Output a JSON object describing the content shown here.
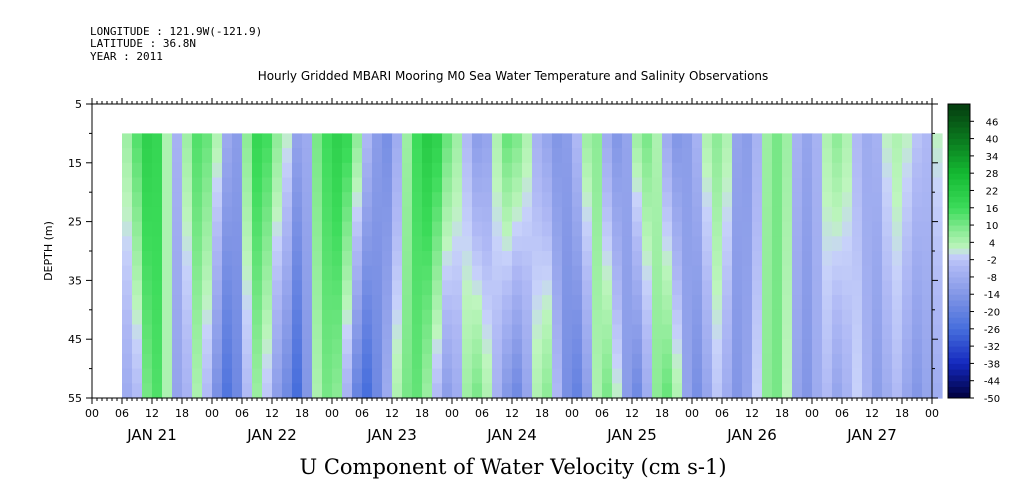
{
  "header": {
    "longitude": "LONGITUDE : 121.9W(-121.9)",
    "latitude": "LATITUDE : 36.8N",
    "year": "YEAR : 2011"
  },
  "chart_data": {
    "type": "heatmap",
    "title": "Hourly Gridded MBARI Mooring M0 Sea Water Temperature and Salinity Observations",
    "xlabel": "",
    "ylabel": "DEPTH (m)",
    "caption": "U Component of Water Velocity (cm s-1)",
    "x_range_hours": [
      0,
      168
    ],
    "data_start_hour": 6,
    "ylim": [
      5,
      55
    ],
    "y_inverted": true,
    "y_ticks": [
      5,
      15,
      25,
      35,
      45,
      55
    ],
    "depth_top_data": 10,
    "x_hour_labels": [
      "00",
      "06",
      "12",
      "18",
      "00",
      "06",
      "12",
      "18",
      "00",
      "06",
      "12",
      "18",
      "00",
      "06",
      "12",
      "18",
      "00",
      "06",
      "12",
      "18",
      "00",
      "06",
      "12",
      "18",
      "00",
      "06",
      "12",
      "18",
      "00"
    ],
    "day_labels": [
      "JAN 21",
      "JAN 22",
      "JAN 23",
      "JAN 24",
      "JAN 25",
      "JAN 26",
      "JAN 27"
    ],
    "colorbar": {
      "ticks": [
        46,
        40,
        34,
        28,
        22,
        16,
        10,
        4,
        -2,
        -8,
        -14,
        -20,
        -26,
        -32,
        -38,
        -44,
        -50
      ],
      "range": [
        -50,
        52
      ]
    },
    "u_profile": {
      "hours": [
        6,
        8,
        10,
        12,
        14,
        16,
        18,
        20,
        22,
        24,
        26,
        28,
        30,
        32,
        34,
        36,
        38,
        40,
        42,
        44,
        46,
        48,
        50,
        52,
        54,
        56,
        58,
        60,
        62,
        64,
        66,
        68,
        70,
        72,
        74,
        76,
        78,
        80,
        82,
        84,
        86,
        88,
        90,
        92,
        94,
        96,
        98,
        100,
        102,
        104,
        106,
        108,
        110,
        112,
        114,
        116,
        118,
        120,
        122,
        124,
        126,
        128,
        130,
        132,
        134,
        136,
        138,
        140,
        142,
        144,
        146,
        148,
        150,
        152,
        154,
        156,
        158,
        160,
        162,
        164,
        166,
        168
      ],
      "surface_u": [
        6,
        14,
        20,
        18,
        4,
        -6,
        6,
        14,
        12,
        4,
        -8,
        -12,
        8,
        18,
        16,
        8,
        2,
        -10,
        -8,
        10,
        16,
        20,
        18,
        8,
        -4,
        -12,
        -16,
        -8,
        6,
        16,
        22,
        20,
        12,
        6,
        -4,
        -12,
        -10,
        4,
        12,
        10,
        4,
        -6,
        -10,
        -14,
        -12,
        -4,
        6,
        8,
        -8,
        -14,
        -10,
        6,
        10,
        4,
        -8,
        -14,
        -12,
        -6,
        4,
        8,
        4,
        -10,
        -12,
        -6,
        6,
        10,
        6,
        -6,
        -10,
        -6,
        4,
        8,
        4,
        -4,
        -8,
        -6,
        2,
        4,
        2,
        -2,
        -4,
        2
      ],
      "bottom_u": [
        -8,
        -4,
        10,
        14,
        4,
        -10,
        -6,
        4,
        -4,
        -16,
        -24,
        -18,
        -4,
        6,
        -2,
        -12,
        -18,
        -26,
        -14,
        4,
        10,
        8,
        -6,
        -20,
        -26,
        -18,
        -8,
        4,
        10,
        12,
        6,
        -4,
        -12,
        -8,
        6,
        10,
        4,
        -6,
        -14,
        -18,
        -10,
        4,
        8,
        -4,
        -16,
        -20,
        -12,
        4,
        10,
        2,
        -12,
        -18,
        -8,
        8,
        12,
        4,
        -10,
        -16,
        -10,
        -2,
        -8,
        -14,
        -10,
        0,
        8,
        10,
        2,
        -10,
        -14,
        -8,
        -4,
        -10,
        -6,
        0,
        -6,
        -12,
        -8,
        -4,
        -10,
        -14,
        -10,
        -8
      ]
    }
  }
}
